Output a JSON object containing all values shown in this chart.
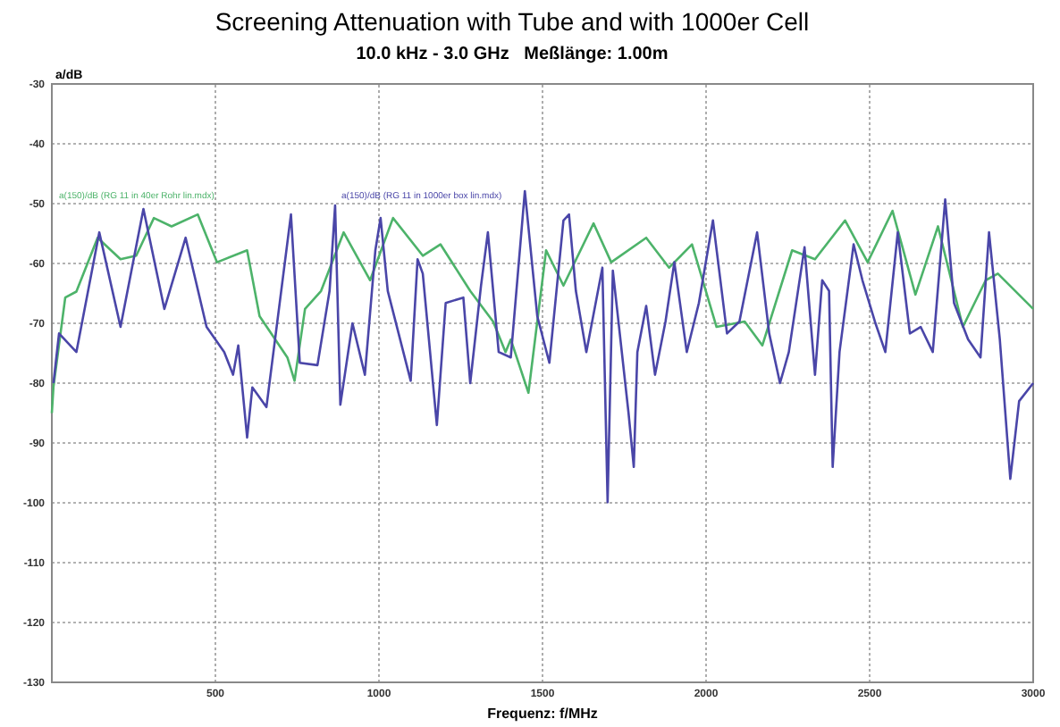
{
  "chart_data": {
    "type": "line",
    "title": "Screening Attenuation with Tube and with 1000er Cell",
    "subtitle": "10.0 kHz - 3.0 GHz   Meßlänge: 1.00m",
    "xlabel": "Frequenz: f/MHz",
    "ylabel": "a/dB",
    "xlim": [
      0,
      3000
    ],
    "xticks": [
      500,
      1000,
      1500,
      2000,
      2500,
      3000
    ],
    "ylim": [
      -130,
      -30
    ],
    "yticks": [
      -130,
      -120,
      -110,
      -100,
      -90,
      -80,
      -70,
      -60,
      -50,
      -40,
      -30
    ],
    "grid": true,
    "line_style": "solid",
    "series": [
      {
        "name": "a(150)/dB (RG 11 in 40er Rohr lin.mdx)",
        "color": "#4db36a",
        "x": [
          0,
          5,
          41,
          75,
          140,
          210,
          258,
          312,
          366,
          446,
          505,
          597,
          635,
          720,
          742,
          774,
          823,
          892,
          973,
          1043,
          1134,
          1188,
          1279,
          1349,
          1387,
          1403,
          1457,
          1511,
          1564,
          1656,
          1710,
          1817,
          1887,
          1957,
          2032,
          2118,
          2172,
          2263,
          2333,
          2425,
          2494,
          2570,
          2640,
          2709,
          2785,
          2855,
          2892,
          3000
        ],
        "values": [
          -85,
          -80.6,
          -65.7,
          -64.7,
          -55.7,
          -59.3,
          -58.7,
          -52.4,
          -53.8,
          -51.8,
          -59.8,
          -57.8,
          -68.8,
          -75.7,
          -79.6,
          -67.6,
          -64.6,
          -54.8,
          -62.8,
          -52.4,
          -58.7,
          -56.8,
          -64.6,
          -69.7,
          -74.8,
          -72.7,
          -81.6,
          -57.8,
          -63.7,
          -53.3,
          -59.8,
          -55.7,
          -60.7,
          -56.8,
          -70.6,
          -69.7,
          -73.7,
          -57.8,
          -59.3,
          -52.8,
          -59.8,
          -51.2,
          -65.2,
          -53.8,
          -70.6,
          -62.8,
          -61.7,
          -67.6
        ]
      },
      {
        "name": "a(150)/dB (RG 11 in 1000er box lin.mdx)",
        "color": "#4a46a8",
        "x": [
          5,
          22,
          75,
          145,
          210,
          280,
          344,
          409,
          473,
          527,
          554,
          570,
          597,
          613,
          656,
          731,
          758,
          812,
          849,
          866,
          882,
          919,
          957,
          989,
          1005,
          1027,
          1097,
          1118,
          1134,
          1177,
          1204,
          1258,
          1279,
          1312,
          1333,
          1366,
          1403,
          1446,
          1484,
          1521,
          1564,
          1581,
          1602,
          1634,
          1683,
          1699,
          1715,
          1763,
          1779,
          1790,
          1817,
          1844,
          1876,
          1903,
          1941,
          1978,
          2021,
          2064,
          2102,
          2156,
          2193,
          2226,
          2253,
          2301,
          2333,
          2355,
          2376,
          2387,
          2408,
          2451,
          2478,
          2516,
          2548,
          2586,
          2623,
          2656,
          2693,
          2731,
          2758,
          2801,
          2839,
          2865,
          2898,
          2930,
          2957,
          3000
        ],
        "values": [
          -80,
          -71.7,
          -74.8,
          -54.8,
          -70.6,
          -50.9,
          -67.6,
          -55.7,
          -70.6,
          -74.8,
          -78.6,
          -73.7,
          -89.1,
          -80.7,
          -84,
          -51.8,
          -76.6,
          -77,
          -64.6,
          -50.3,
          -83.6,
          -70,
          -78.6,
          -57.8,
          -52.4,
          -64.6,
          -79.6,
          -59.3,
          -61.7,
          -87,
          -66.6,
          -65.7,
          -80,
          -63.7,
          -54.8,
          -74.8,
          -75.7,
          -47.9,
          -68.8,
          -76.6,
          -52.8,
          -51.8,
          -64.6,
          -74.8,
          -60.7,
          -99.9,
          -61.2,
          -85,
          -94,
          -74.8,
          -67.1,
          -78.6,
          -69.7,
          -59.8,
          -74.8,
          -66.6,
          -52.8,
          -71.7,
          -69.7,
          -54.8,
          -71.7,
          -80,
          -74.8,
          -57.3,
          -78.6,
          -62.8,
          -64.6,
          -94,
          -74.8,
          -56.8,
          -62.8,
          -69.7,
          -74.8,
          -54.8,
          -71.7,
          -70.6,
          -74.8,
          -49.3,
          -66.6,
          -72.7,
          -75.7,
          -54.8,
          -72.7,
          -96,
          -83,
          -80
        ]
      }
    ]
  }
}
